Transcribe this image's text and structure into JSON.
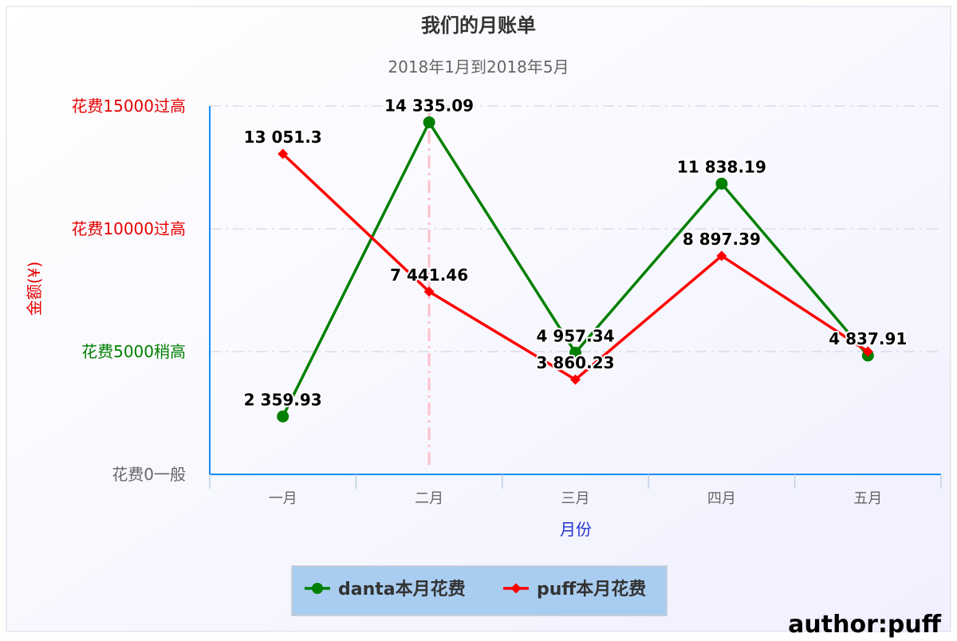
{
  "chart_data": {
    "type": "line",
    "title": "我们的月账单",
    "subtitle": "2018年1月到2018年5月",
    "xlabel": "月份",
    "ylabel": "金额(¥)",
    "categories": [
      "一月",
      "二月",
      "三月",
      "四月",
      "五月"
    ],
    "ylim": [
      0,
      15000
    ],
    "y_ticks": [
      {
        "value": 0,
        "label": "花费0一般",
        "color": "#666666"
      },
      {
        "value": 5000,
        "label": "花费5000稍高",
        "color": "#008000"
      },
      {
        "value": 10000,
        "label": "花费10000过高",
        "color": "#e60000"
      },
      {
        "value": 15000,
        "label": "花费15000过高",
        "color": "#e60000"
      }
    ],
    "grid": true,
    "plot_band_category": "二月",
    "series": [
      {
        "name": "danta本月花费",
        "color": "#008000",
        "marker": "circle",
        "values": [
          2359.93,
          14335.09,
          4957.34,
          11838.19,
          4837.91
        ],
        "labels": [
          "2 359.93",
          "14 335.09",
          "4 957.34",
          "11 838.19",
          "4 837.91"
        ]
      },
      {
        "name": "puff本月花费",
        "color": "#ff0000",
        "marker": "diamond",
        "values": [
          13051.3,
          7441.46,
          3860.23,
          8897.39,
          5000
        ],
        "labels": [
          "13 051.3",
          "7 441.46",
          "3 860.23",
          "8 897.39",
          ""
        ]
      }
    ],
    "legend_position": "bottom-center",
    "credit": "author:puff"
  }
}
